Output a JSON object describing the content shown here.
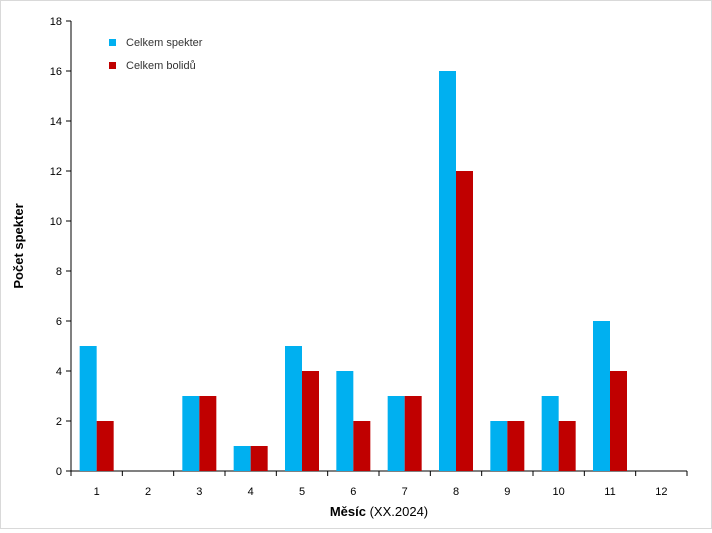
{
  "chart_data": {
    "type": "bar",
    "title": "",
    "xlabel_bold": "Měsíc",
    "xlabel_rest": " (XX.2024)",
    "ylabel": "Počet spekter",
    "categories": [
      "1",
      "2",
      "3",
      "4",
      "5",
      "6",
      "7",
      "8",
      "9",
      "10",
      "11",
      "12"
    ],
    "ylim": [
      0,
      18
    ],
    "yticks": [
      "0",
      "2",
      "4",
      "6",
      "8",
      "10",
      "12",
      "14",
      "16",
      "18"
    ],
    "grid": false,
    "legend_position": "top-left",
    "series": [
      {
        "name": "Celkem spekter",
        "color": "#00b0f0",
        "values": [
          5,
          0,
          3,
          1,
          5,
          4,
          3,
          16,
          2,
          3,
          6,
          0
        ]
      },
      {
        "name": "Celkem bolidů",
        "color": "#c00000",
        "values": [
          2,
          0,
          3,
          1,
          4,
          2,
          3,
          12,
          2,
          2,
          4,
          0
        ]
      }
    ]
  }
}
